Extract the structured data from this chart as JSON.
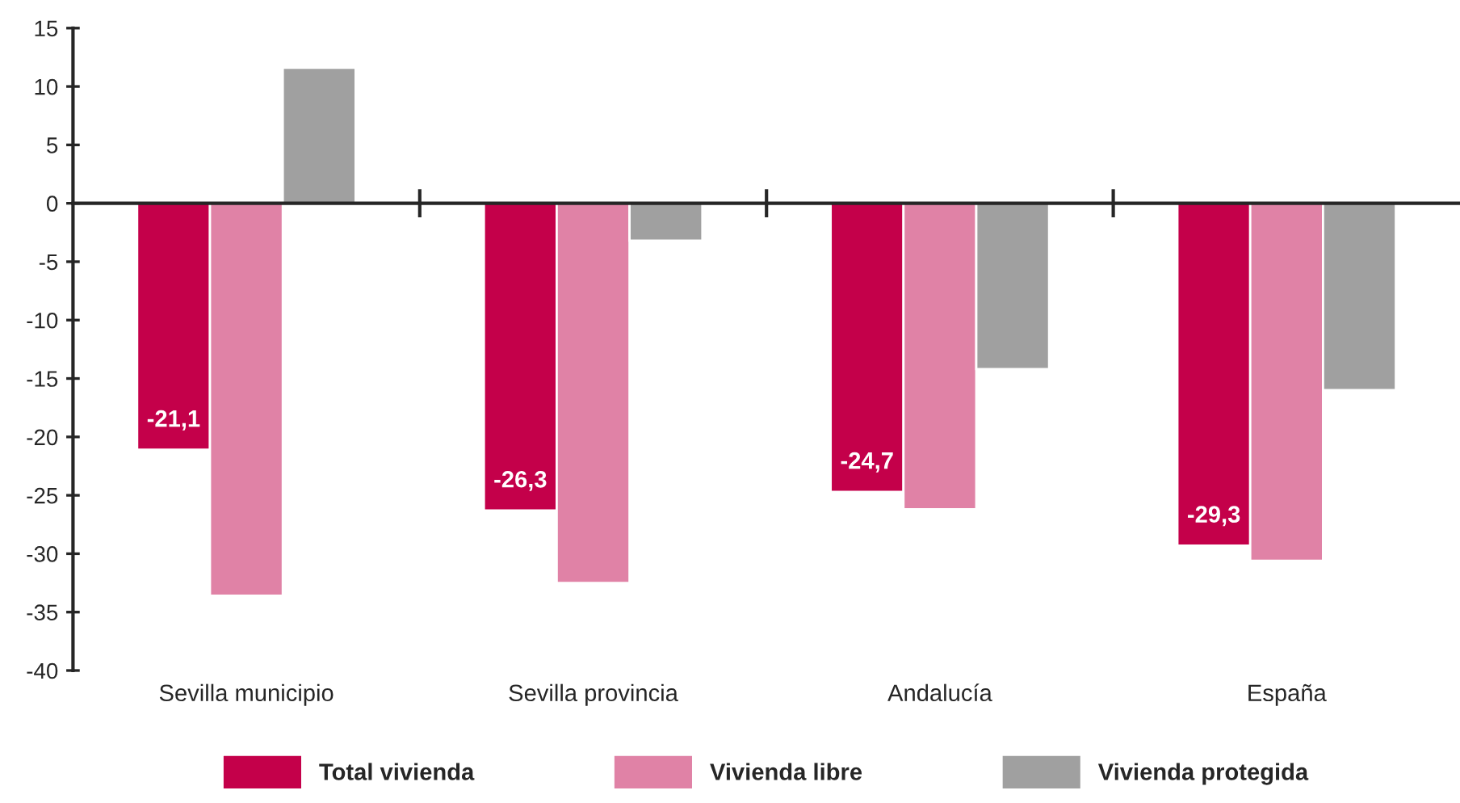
{
  "chart_data": {
    "type": "bar",
    "categories": [
      "Sevilla municipio",
      "Sevilla provincia",
      "Andalucía",
      "España"
    ],
    "series": [
      {
        "name": "Total vivienda",
        "color": "#c4004a",
        "values": [
          -21.1,
          -26.3,
          -24.7,
          -29.3
        ],
        "value_labels": [
          "-21,1",
          "-26,3",
          "-24,7",
          "-29,3"
        ]
      },
      {
        "name": "Vivienda libre",
        "color": "#e082a6",
        "values": [
          -33.6,
          -32.5,
          -26.2,
          -30.6
        ]
      },
      {
        "name": "Vivienda protegida",
        "color": "#a0a0a0",
        "values": [
          11.6,
          -3.2,
          -14.2,
          -16.0
        ]
      }
    ],
    "ylim": [
      -40,
      15
    ],
    "yticks": [
      -40,
      -35,
      -30,
      -25,
      -20,
      -15,
      -10,
      -5,
      0,
      5,
      10,
      15
    ],
    "legend": "bottom"
  }
}
